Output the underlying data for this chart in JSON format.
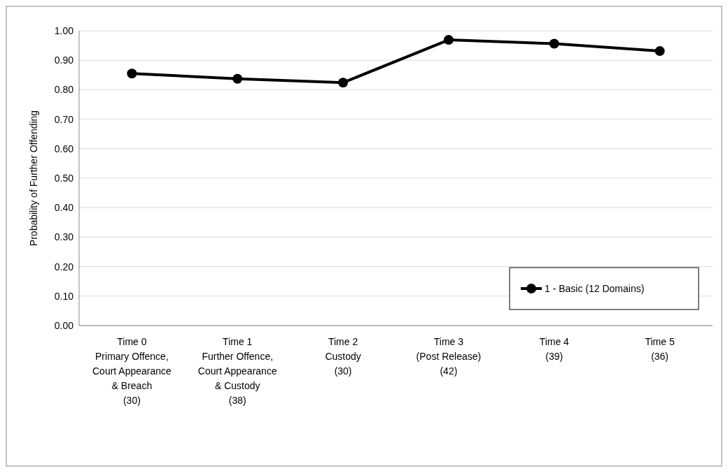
{
  "chart_data": {
    "type": "line",
    "ylabel": "Probability of Further Offending",
    "categories": [
      "Time 0\nPrimary Offence,\nCourt Appearance\n& Breach\n(30)",
      "Time 1\nFurther Offence,\nCourt Appearance\n& Custody\n(38)",
      "Time 2\nCustody\n(30)",
      "Time 3\n(Post Release)\n(42)",
      "Time 4\n(39)",
      "Time 5\n(36)"
    ],
    "series": [
      {
        "name": "1 - Basic (12 Domains)",
        "color": "#000000",
        "values": [
          0.855,
          0.837,
          0.824,
          0.969,
          0.956,
          0.931
        ]
      }
    ],
    "ylim": [
      0,
      1
    ],
    "yticks": [
      {
        "value": 0,
        "label": "0.00"
      },
      {
        "value": 0.1,
        "label": "0.10"
      },
      {
        "value": 0.2,
        "label": "0.20"
      },
      {
        "value": 0.3,
        "label": "0.30"
      },
      {
        "value": 0.4,
        "label": "0.40"
      },
      {
        "value": 0.5,
        "label": "0.50"
      },
      {
        "value": 0.6,
        "label": "0.60"
      },
      {
        "value": 0.7,
        "label": "0.70"
      },
      {
        "value": 0.8,
        "label": "0.80"
      },
      {
        "value": 0.9,
        "label": "0.90"
      },
      {
        "value": 1,
        "label": "1.00"
      }
    ],
    "grid": "y",
    "legend": "bottom right",
    "marker": "circle",
    "line_style": "solid"
  }
}
